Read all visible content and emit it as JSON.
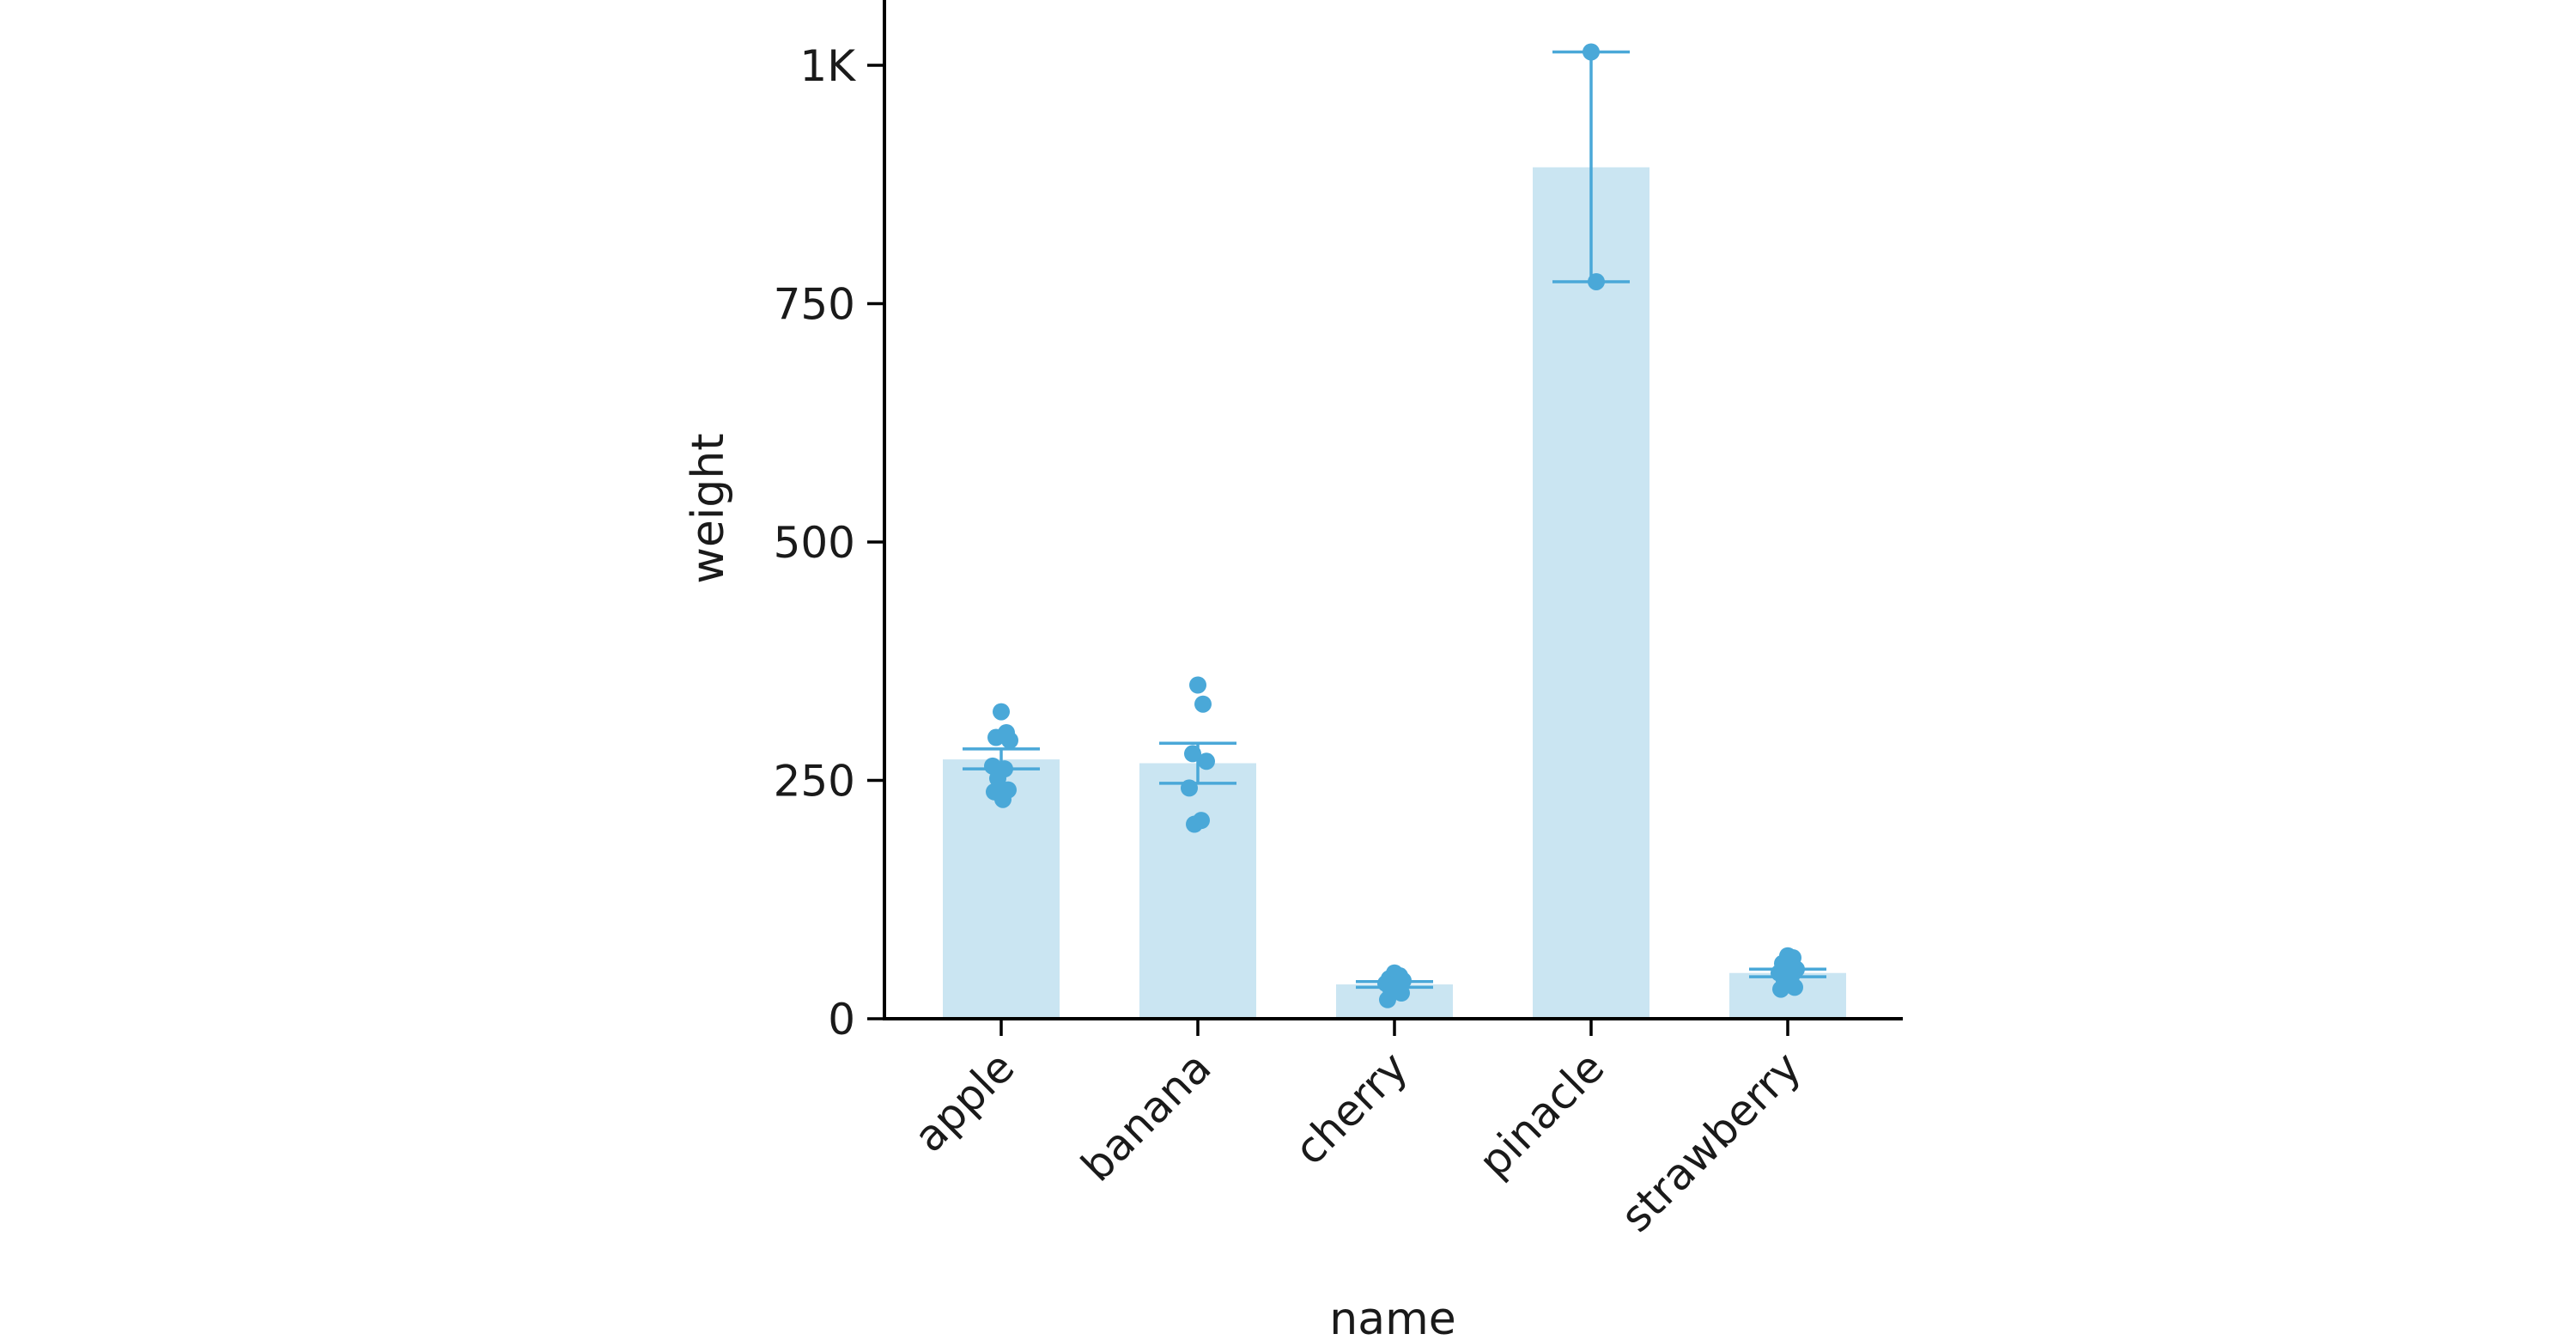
{
  "chart_data": {
    "type": "bar",
    "title": "",
    "xlabel": "name",
    "ylabel": "weight",
    "categories": [
      "apple",
      "banana",
      "cherry",
      "pinacle",
      "strawberry"
    ],
    "ylim": [
      0,
      1060
    ],
    "yticks": [
      {
        "value": 0,
        "label": "0"
      },
      {
        "value": 250,
        "label": "250"
      },
      {
        "value": 500,
        "label": "500"
      },
      {
        "value": 750,
        "label": "750"
      },
      {
        "value": 1000,
        "label": "1K"
      }
    ],
    "values": [
      272,
      268,
      36,
      893,
      48
    ],
    "error_bars": [
      {
        "low": 262,
        "high": 283
      },
      {
        "low": 247,
        "high": 289
      },
      {
        "low": 33,
        "high": 39
      },
      {
        "low": 773,
        "high": 1014
      },
      {
        "low": 44,
        "high": 52
      }
    ],
    "points": [
      [
        322,
        300,
        295,
        292,
        265,
        262,
        252,
        240,
        238,
        230
      ],
      [
        350,
        330,
        278,
        270,
        242,
        208,
        204
      ],
      [
        48,
        45,
        42,
        40,
        37,
        35,
        30,
        27,
        20
      ],
      [
        1014,
        773
      ],
      [
        66,
        64,
        58,
        52,
        48,
        44,
        40,
        33,
        31
      ]
    ],
    "grid": false,
    "legend": "none",
    "colors": {
      "bar": "#cae5f2",
      "point": "#4aa8d8",
      "errorbar": "#4aa8d8",
      "axis": "#000000"
    }
  }
}
